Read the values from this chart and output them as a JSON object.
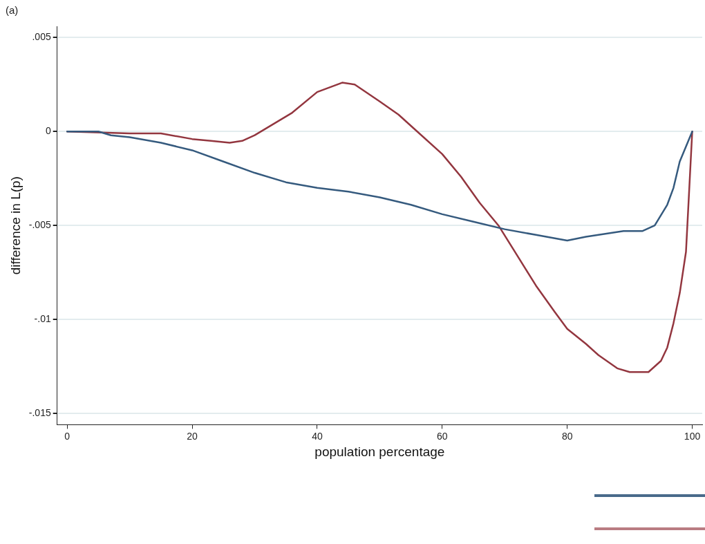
{
  "chart_data": {
    "type": "line",
    "xlabel": "population percentage",
    "ylabel": "difference in L(p)",
    "annotations": [
      "(a)"
    ],
    "xlim": [
      -1.6,
      101.6
    ],
    "xticks": [
      0,
      20,
      40,
      60,
      80,
      100
    ],
    "ylim": [
      -0.0156,
      0.0056
    ],
    "yticks": [
      {
        "value": 0.005,
        "label": ".005"
      },
      {
        "value": 0,
        "label": "0"
      },
      {
        "value": -0.005,
        "label": "-.005"
      },
      {
        "value": -0.01,
        "label": "-.01"
      },
      {
        "value": -0.015,
        "label": "-.015"
      }
    ],
    "grid": "y",
    "marker": "none",
    "line_style": "solid",
    "series": [
      {
        "color": "#355a7e",
        "x": [
          0,
          5,
          7,
          10,
          15,
          20,
          25,
          30,
          35,
          40,
          45,
          50,
          55,
          60,
          65,
          70,
          75,
          80,
          83,
          85,
          89,
          92,
          94,
          96,
          97,
          98,
          100
        ],
        "values": [
          0,
          0,
          -0.0002,
          -0.0003,
          -0.0006,
          -0.001,
          -0.0016,
          -0.0022,
          -0.0027,
          -0.003,
          -0.0032,
          -0.0035,
          -0.0039,
          -0.0044,
          -0.0048,
          -0.0052,
          -0.0055,
          -0.0058,
          -0.0056,
          -0.0055,
          -0.0053,
          -0.0053,
          -0.005,
          -0.0039,
          -0.003,
          -0.0016,
          0
        ]
      },
      {
        "color": "#93363f",
        "x": [
          0,
          10,
          15,
          20,
          23,
          26,
          28,
          30,
          33,
          36,
          40,
          44,
          46,
          50,
          53,
          56,
          60,
          63,
          66,
          69,
          72,
          75,
          78,
          80,
          83,
          85,
          88,
          90,
          93,
          95,
          96,
          97,
          98,
          99,
          100
        ],
        "values": [
          0,
          -0.0001,
          -0.0001,
          -0.0004,
          -0.0005,
          -0.0006,
          -0.0005,
          -0.0002,
          0.0004,
          0.001,
          0.0021,
          0.0026,
          0.0025,
          0.0016,
          0.0009,
          0,
          -0.0012,
          -0.0024,
          -0.0038,
          -0.005,
          -0.0066,
          -0.0082,
          -0.0096,
          -0.0105,
          -0.0113,
          -0.0119,
          -0.0126,
          -0.0128,
          -0.0128,
          -0.0122,
          -0.0115,
          -0.0102,
          -0.0086,
          -0.0064,
          0
        ]
      }
    ]
  }
}
